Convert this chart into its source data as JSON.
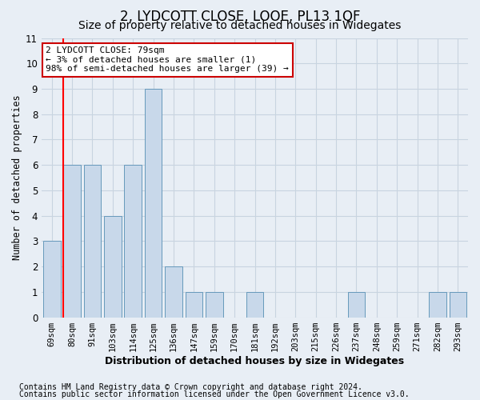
{
  "title": "2, LYDCOTT CLOSE, LOOE, PL13 1QF",
  "subtitle": "Size of property relative to detached houses in Widegates",
  "xlabel": "Distribution of detached houses by size in Widegates",
  "ylabel": "Number of detached properties",
  "categories": [
    "69sqm",
    "80sqm",
    "91sqm",
    "103sqm",
    "114sqm",
    "125sqm",
    "136sqm",
    "147sqm",
    "159sqm",
    "170sqm",
    "181sqm",
    "192sqm",
    "203sqm",
    "215sqm",
    "226sqm",
    "237sqm",
    "248sqm",
    "259sqm",
    "271sqm",
    "282sqm",
    "293sqm"
  ],
  "values": [
    3,
    6,
    6,
    4,
    6,
    9,
    2,
    1,
    1,
    0,
    1,
    0,
    0,
    0,
    0,
    1,
    0,
    0,
    0,
    1,
    1
  ],
  "bar_color": "#c8d8ea",
  "bar_edge_color": "#6699bb",
  "grid_color": "#c8d4e0",
  "red_line_index": 1,
  "annotation_line1": "2 LYDCOTT CLOSE: 79sqm",
  "annotation_line2": "← 3% of detached houses are smaller (1)",
  "annotation_line3": "98% of semi-detached houses are larger (39) →",
  "annotation_box_color": "#ffffff",
  "annotation_box_edge": "#cc0000",
  "ylim": [
    0,
    11
  ],
  "yticks": [
    0,
    1,
    2,
    3,
    4,
    5,
    6,
    7,
    8,
    9,
    10,
    11
  ],
  "footer1": "Contains HM Land Registry data © Crown copyright and database right 2024.",
  "footer2": "Contains public sector information licensed under the Open Government Licence v3.0.",
  "bg_color": "#e8eef5",
  "plot_bg_color": "#e8eef5",
  "title_fontsize": 12,
  "subtitle_fontsize": 10,
  "axis_label_fontsize": 8.5,
  "tick_fontsize": 7.5,
  "footer_fontsize": 7,
  "annotation_fontsize": 8
}
